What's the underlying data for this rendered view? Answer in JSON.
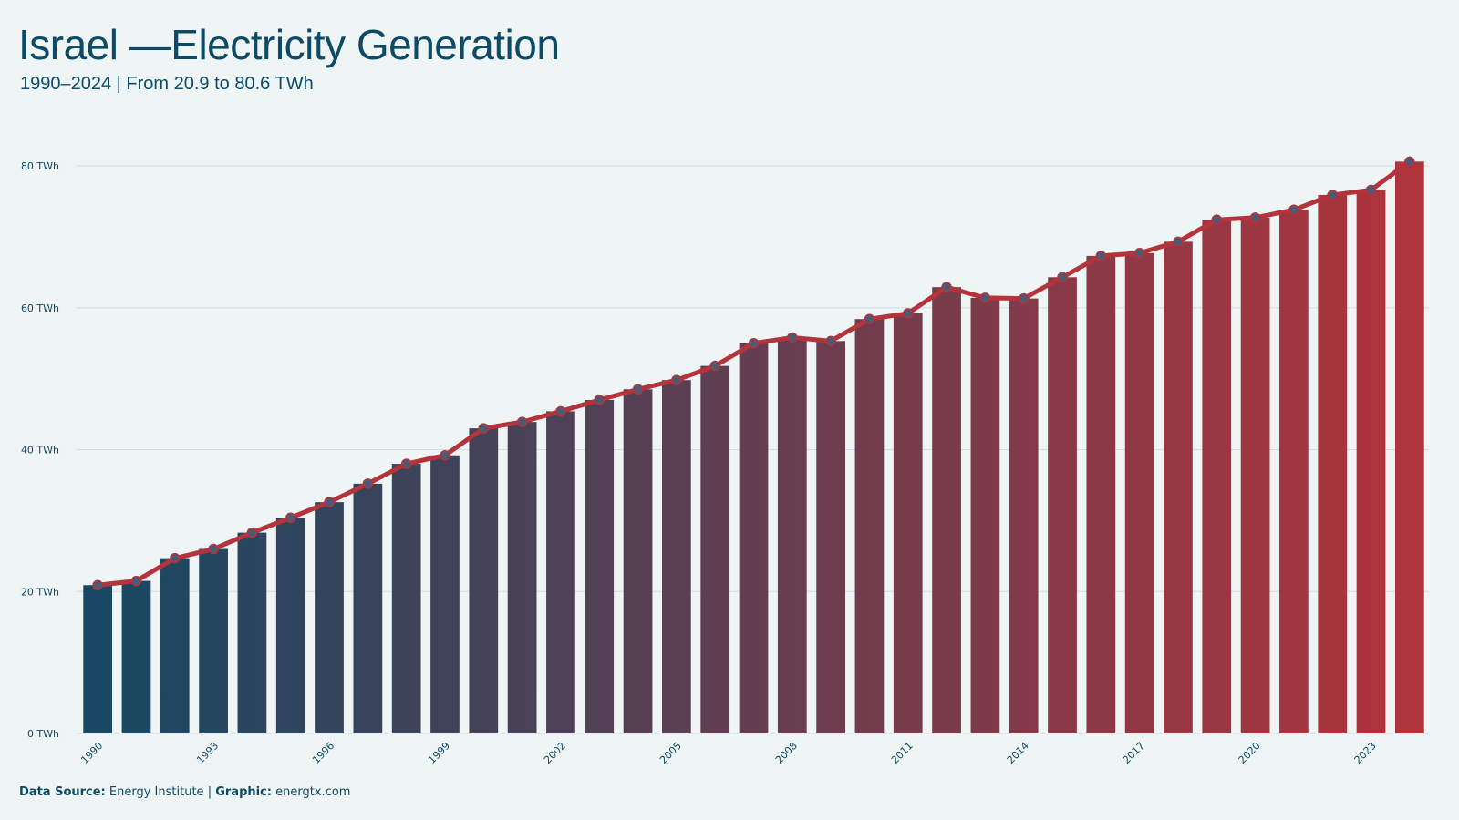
{
  "header": {
    "title": "Israel —Electricity Generation",
    "subtitle": "1990–2024 | From 20.9 to 80.6 TWh"
  },
  "footer": {
    "source_label": "Data Source:",
    "source_value": "Energy Institute",
    "separator": "|",
    "graphic_label": "Graphic:",
    "graphic_value": "energtx.com"
  },
  "colors": {
    "bar_start": "#0d4a66",
    "bar_end": "#b5333b",
    "line": "#b5333b",
    "point_fill": "#4e5a75",
    "grid": "#d5dcdf"
  },
  "chart_data": {
    "type": "bar",
    "title": "Israel —Electricity Generation",
    "subtitle": "1990–2024 | From 20.9 to 80.6 TWh",
    "xlabel": "",
    "ylabel": "",
    "ylim": [
      0,
      80
    ],
    "yticks": [
      0,
      20,
      40,
      60,
      80
    ],
    "ytick_labels": [
      "0 TWh",
      "20 TWh",
      "40 TWh",
      "60 TWh",
      "80 TWh"
    ],
    "xtick_labels": [
      "1990",
      "1993",
      "1996",
      "1999",
      "2002",
      "2005",
      "2008",
      "2011",
      "2014",
      "2017",
      "2020",
      "2023"
    ],
    "grid": true,
    "categories": [
      "1990",
      "1991",
      "1992",
      "1993",
      "1994",
      "1995",
      "1996",
      "1997",
      "1998",
      "1999",
      "2000",
      "2001",
      "2002",
      "2003",
      "2004",
      "2005",
      "2006",
      "2007",
      "2008",
      "2009",
      "2010",
      "2011",
      "2012",
      "2013",
      "2014",
      "2015",
      "2016",
      "2017",
      "2018",
      "2019",
      "2020",
      "2021",
      "2022",
      "2023",
      "2024"
    ],
    "values": [
      20.9,
      21.5,
      24.7,
      26.0,
      28.3,
      30.4,
      32.6,
      35.2,
      38.0,
      39.2,
      43.0,
      43.9,
      45.4,
      47.0,
      48.5,
      49.8,
      51.8,
      55.0,
      55.8,
      55.3,
      58.4,
      59.2,
      62.9,
      61.4,
      61.3,
      64.3,
      67.3,
      67.7,
      69.3,
      72.4,
      72.7,
      73.8,
      75.9,
      76.6,
      80.6
    ]
  }
}
